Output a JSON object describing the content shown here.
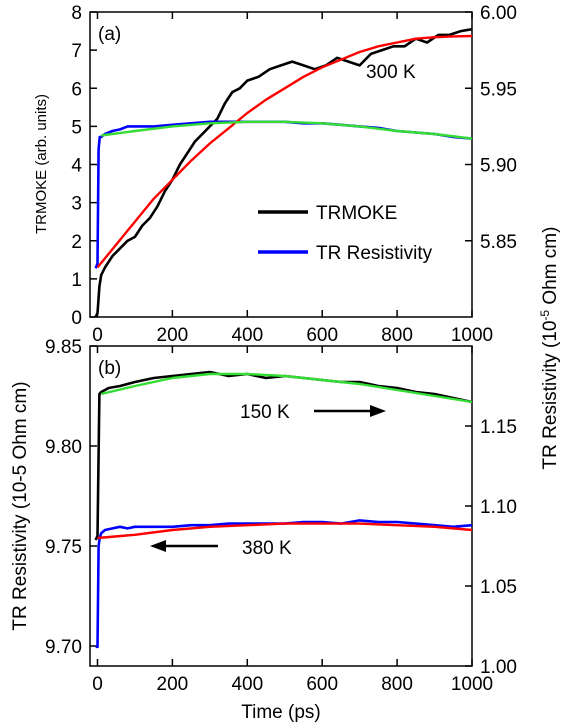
{
  "colors": {
    "trmoke": "#000000",
    "tr_resistivity": "#0000ff",
    "fit_red": "#ff0000",
    "fit_green": "#33dd33"
  },
  "chart_data": [
    {
      "type": "line",
      "panel_label": "(a)",
      "xlabel": "",
      "ylabel_left": "TRMOKE (arb. units)",
      "ylabel_right": "TR Resistivity (10",
      "ylabel_right_sup": "-5",
      "ylabel_right_tail": " Ohm cm)",
      "xlim": [
        -20,
        1000
      ],
      "ylim_left": [
        0,
        8
      ],
      "ylim_right": [
        5.8,
        6.0
      ],
      "xticks": [
        "0",
        "200",
        "400",
        "600",
        "800",
        "1000"
      ],
      "yticks_left": [
        "0",
        "1",
        "2",
        "3",
        "4",
        "5",
        "6",
        "7",
        "8"
      ],
      "yticks_right": [
        "5.85",
        "5.90",
        "5.95",
        "6.00"
      ],
      "annotation": "300 K",
      "legend": {
        "position": "lower-right",
        "entries": [
          "TRMOKE",
          "TR Resistivity"
        ]
      },
      "series": [
        {
          "name": "TRMOKE",
          "axis": "left",
          "x": [
            -5,
            0,
            5,
            10,
            20,
            40,
            60,
            80,
            100,
            120,
            140,
            160,
            180,
            200,
            220,
            240,
            260,
            280,
            300,
            320,
            340,
            360,
            380,
            400,
            430,
            460,
            490,
            520,
            550,
            580,
            610,
            640,
            670,
            700,
            730,
            760,
            790,
            820,
            850,
            880,
            910,
            940,
            970,
            1000
          ],
          "y": [
            0,
            0.1,
            0.8,
            1.1,
            1.3,
            1.6,
            1.8,
            2.0,
            2.1,
            2.4,
            2.6,
            2.9,
            3.3,
            3.6,
            4.0,
            4.3,
            4.6,
            4.8,
            5.0,
            5.2,
            5.6,
            5.9,
            6.0,
            6.2,
            6.3,
            6.5,
            6.6,
            6.7,
            6.6,
            6.5,
            6.6,
            6.8,
            6.7,
            6.6,
            6.9,
            7.0,
            7.1,
            7.1,
            7.3,
            7.2,
            7.4,
            7.4,
            7.5,
            7.55
          ]
        },
        {
          "name": "TR Resistivity",
          "axis": "right",
          "x": [
            -5,
            0,
            3,
            6,
            10,
            20,
            40,
            60,
            80,
            100,
            150,
            200,
            250,
            300,
            350,
            400,
            450,
            500,
            550,
            600,
            650,
            700,
            750,
            800,
            850,
            900,
            950,
            1000
          ],
          "y": [
            5.832,
            5.835,
            5.91,
            5.918,
            5.918,
            5.92,
            5.922,
            5.923,
            5.925,
            5.925,
            5.925,
            5.926,
            5.927,
            5.928,
            5.928,
            5.928,
            5.928,
            5.928,
            5.927,
            5.927,
            5.926,
            5.925,
            5.924,
            5.922,
            5.921,
            5.92,
            5.918,
            5.917
          ]
        }
      ],
      "fits": [
        {
          "axis": "left",
          "color_key": "fit_red",
          "x": [
            0,
            50,
            100,
            150,
            200,
            250,
            300,
            350,
            400,
            450,
            500,
            550,
            600,
            650,
            700,
            750,
            800,
            850,
            900,
            950,
            1000
          ],
          "y": [
            1.3,
            1.9,
            2.5,
            3.1,
            3.6,
            4.1,
            4.55,
            4.95,
            5.35,
            5.7,
            6.0,
            6.3,
            6.55,
            6.75,
            6.95,
            7.1,
            7.2,
            7.3,
            7.34,
            7.36,
            7.37
          ]
        },
        {
          "axis": "right",
          "color_key": "fit_green",
          "x": [
            10,
            100,
            200,
            300,
            400,
            500,
            600,
            700,
            800,
            900,
            1000
          ],
          "y": [
            5.919,
            5.922,
            5.925,
            5.927,
            5.928,
            5.928,
            5.927,
            5.925,
            5.922,
            5.92,
            5.917
          ]
        }
      ]
    },
    {
      "type": "line",
      "panel_label": "(b)",
      "xlabel": "Time (ps)",
      "ylabel_left": "TR Resistivity (10-5 Ohm cm)",
      "ylabel_right": "",
      "xlim": [
        -20,
        1000
      ],
      "ylim_left": [
        9.69,
        9.85
      ],
      "ylim_right": [
        1.0,
        1.2
      ],
      "xticks": [
        "0",
        "200",
        "400",
        "600",
        "800",
        "1000"
      ],
      "yticks_left": [
        "9.70",
        "9.75",
        "9.80",
        "9.85"
      ],
      "yticks_right": [
        "1.00",
        "1.05",
        "1.10",
        "1.15"
      ],
      "annotations": [
        {
          "text": "150 K",
          "arrow": "right"
        },
        {
          "text": "380 K",
          "arrow": "left"
        }
      ],
      "series": [
        {
          "name": "150 K",
          "axis": "left",
          "x": [
            -5,
            0,
            5,
            10,
            30,
            60,
            100,
            150,
            200,
            250,
            300,
            350,
            400,
            450,
            500,
            550,
            600,
            650,
            700,
            750,
            800,
            850,
            900,
            950,
            1000
          ],
          "y": [
            9.753,
            9.755,
            9.826,
            9.827,
            9.829,
            9.83,
            9.832,
            9.834,
            9.835,
            9.836,
            9.837,
            9.835,
            9.836,
            9.834,
            9.835,
            9.834,
            9.833,
            9.832,
            9.832,
            9.83,
            9.829,
            9.827,
            9.826,
            9.824,
            9.822
          ]
        },
        {
          "name": "380 K",
          "axis": "right",
          "x": [
            -5,
            0,
            3,
            6,
            10,
            20,
            40,
            60,
            80,
            100,
            150,
            200,
            250,
            300,
            350,
            400,
            450,
            500,
            550,
            600,
            650,
            700,
            750,
            800,
            850,
            900,
            950,
            1000
          ],
          "y": [
            1.012,
            1.012,
            1.075,
            1.08,
            1.083,
            1.085,
            1.086,
            1.087,
            1.086,
            1.087,
            1.087,
            1.087,
            1.088,
            1.088,
            1.089,
            1.089,
            1.089,
            1.089,
            1.09,
            1.09,
            1.089,
            1.091,
            1.09,
            1.09,
            1.089,
            1.088,
            1.087,
            1.088
          ]
        }
      ],
      "fits": [
        {
          "axis": "left",
          "color_key": "fit_green",
          "x": [
            10,
            100,
            200,
            300,
            400,
            500,
            600,
            700,
            800,
            900,
            1000
          ],
          "y": [
            9.826,
            9.83,
            9.834,
            9.836,
            9.836,
            9.835,
            9.833,
            9.831,
            9.828,
            9.825,
            9.822
          ]
        },
        {
          "axis": "right",
          "color_key": "fit_red",
          "x": [
            0,
            100,
            200,
            300,
            400,
            500,
            600,
            700,
            800,
            900,
            1000
          ],
          "y": [
            1.08,
            1.082,
            1.085,
            1.087,
            1.088,
            1.089,
            1.089,
            1.089,
            1.088,
            1.087,
            1.085
          ]
        }
      ]
    }
  ]
}
